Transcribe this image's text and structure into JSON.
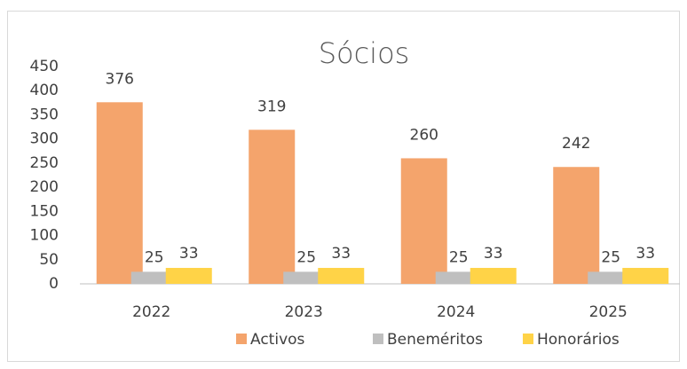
{
  "chart_data": {
    "type": "bar",
    "title": "Sócios",
    "categories": [
      "2022",
      "2023",
      "2024",
      "2025"
    ],
    "series": [
      {
        "name": "Activos",
        "color": "#f4a46c",
        "values": [
          376,
          319,
          260,
          242
        ]
      },
      {
        "name": "Beneméritos",
        "color": "#bfbfbf",
        "values": [
          25,
          25,
          25,
          25
        ]
      },
      {
        "name": "Honorários",
        "color": "#ffd347",
        "values": [
          33,
          33,
          33,
          33
        ]
      }
    ],
    "ylim": [
      0,
      450
    ],
    "yticks": [
      0,
      50,
      100,
      150,
      200,
      250,
      300,
      350,
      400,
      450
    ],
    "grid": false,
    "data_labels": true,
    "legend": "bottom"
  }
}
